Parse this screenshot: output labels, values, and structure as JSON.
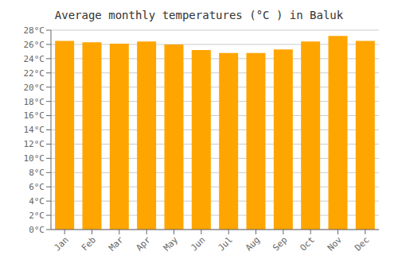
{
  "chart_data": {
    "type": "bar",
    "title": "Average monthly temperatures (°C ) in Baluk",
    "categories": [
      "Jan",
      "Feb",
      "Mar",
      "Apr",
      "May",
      "Jun",
      "Jul",
      "Aug",
      "Sep",
      "Oct",
      "Nov",
      "Dec"
    ],
    "values": [
      26.5,
      26.3,
      26.1,
      26.4,
      26.0,
      25.2,
      24.8,
      24.8,
      25.3,
      26.4,
      27.2,
      26.5
    ],
    "color": "#FFA500",
    "ylim": [
      0,
      28
    ],
    "yticks": [
      {
        "value": 0,
        "label": "0°C"
      },
      {
        "value": 2,
        "label": "2°C"
      },
      {
        "value": 4,
        "label": "4°C"
      },
      {
        "value": 6,
        "label": "6°C"
      },
      {
        "value": 8,
        "label": "8°C"
      },
      {
        "value": 10,
        "label": "10°C"
      },
      {
        "value": 12,
        "label": "12°C"
      },
      {
        "value": 14,
        "label": "14°C"
      },
      {
        "value": 16,
        "label": "16°C"
      },
      {
        "value": 18,
        "label": "18°C"
      },
      {
        "value": 20,
        "label": "20°C"
      },
      {
        "value": 22,
        "label": "22°C"
      },
      {
        "value": 24,
        "label": "24°C"
      },
      {
        "value": 26,
        "label": "26°C"
      },
      {
        "value": 28,
        "label": "28°C"
      }
    ],
    "grid": true
  }
}
